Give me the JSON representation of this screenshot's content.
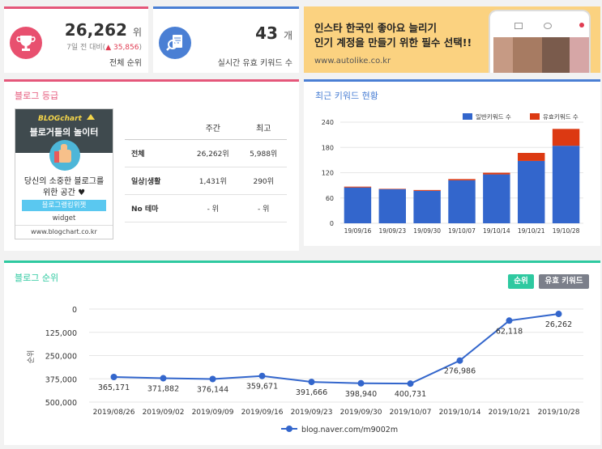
{
  "rank_card": {
    "value": "26,262",
    "unit": "위",
    "change_prefix": "7일 전 대비(",
    "change_value": "▲ 35,856",
    "change_suffix": ")",
    "label": "전체 순위"
  },
  "keyword_card": {
    "value": "43",
    "unit": "개",
    "label": "실시간 유효 키워드 수"
  },
  "ad": {
    "line1": "인스타 한국인 좋아요 늘리기",
    "line2": "인기 계정을 만들기 위한 필수 선택!!",
    "url": "www.autolike.co.kr"
  },
  "blog_grade": {
    "title": "블로그 등급",
    "widget": {
      "brand": "BLOGchart",
      "subtitle": "블로거들의 놀이터",
      "text1": "당신의 소중한 블로그를",
      "text2": "위한 공간 ♥",
      "button": "블로그랭킹위젯",
      "label": "widget",
      "url": "www.blogchart.co.kr"
    },
    "table": {
      "headers": [
        "",
        "주간",
        "최고"
      ],
      "rows": [
        {
          "name": "전체",
          "weekly": "26,262위",
          "best": "5,988위"
        },
        {
          "name": "일상|생활",
          "weekly": "1,431위",
          "best": "290위"
        },
        {
          "name": "No 테마",
          "weekly": "- 위",
          "best": "- 위"
        }
      ]
    }
  },
  "keyword_status": {
    "title": "최근 키워드 현황",
    "legend": [
      "일반키워드 수",
      "유효키워드 수"
    ],
    "colors": {
      "general": "#3366cc",
      "valid": "#dc3912"
    },
    "chart_data": {
      "type": "bar",
      "stacked": true,
      "categories": [
        "19/09/16",
        "19/09/23",
        "19/09/30",
        "19/10/07",
        "19/10/14",
        "19/10/21",
        "19/10/28"
      ],
      "series": [
        {
          "name": "일반키워드 수",
          "values": [
            85,
            81,
            77,
            102,
            116,
            148,
            184
          ]
        },
        {
          "name": "유효키워드 수",
          "values": [
            2,
            1,
            2,
            3,
            4,
            19,
            40
          ]
        }
      ],
      "ylim": [
        0,
        240
      ],
      "yticks": [
        "0",
        "60",
        "120",
        "180",
        "240"
      ],
      "legend_position": "top-right"
    }
  },
  "blog_rank": {
    "title": "블로그 순위",
    "buttons": {
      "rank": "순위",
      "keyword": "유효 키워드"
    },
    "colors": {
      "line": "#3366cc",
      "rank_btn": "#2ec9a0",
      "keyword_btn": "#7b7f8a"
    },
    "chart_data": {
      "type": "line",
      "y_inverted": true,
      "ylabel": "순위",
      "ylim": [
        0,
        500000
      ],
      "yticks": [
        "0",
        "125,000",
        "250,000",
        "375,000",
        "500,000"
      ],
      "x": [
        "2019/08/26",
        "2019/09/02",
        "2019/09/09",
        "2019/09/16",
        "2019/09/23",
        "2019/09/30",
        "2019/10/07",
        "2019/10/14",
        "2019/10/21",
        "2019/10/28"
      ],
      "series": [
        {
          "name": "blog.naver.com/m9002m",
          "values": [
            365171,
            371882,
            376144,
            359671,
            391666,
            398940,
            400731,
            276986,
            62118,
            26262
          ],
          "labels": [
            "365,171",
            "371,882",
            "376,144",
            "359,671",
            "391,666",
            "398,940",
            "400,731",
            "276,986",
            "62,118",
            "26,262"
          ]
        }
      ],
      "legend_position": "bottom"
    }
  }
}
